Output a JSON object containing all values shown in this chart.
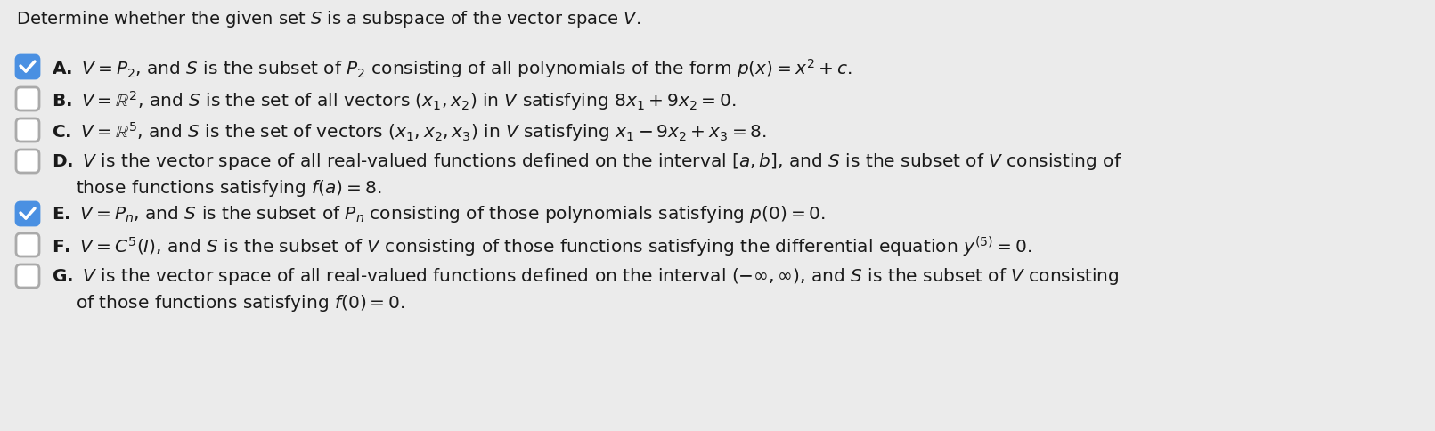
{
  "background_color": "#ebebeb",
  "title_text": "Determine whether the given set $S$ is a subspace of the vector space $V$.",
  "items": [
    {
      "label": "A",
      "checked": true,
      "text": "$\\mathbf{A.}$ $V = P_2$, and $S$ is the subset of $P_2$ consisting of all polynomials of the form $p(x) = x^2 + c$."
    },
    {
      "label": "B",
      "checked": false,
      "text": "$\\mathbf{B.}$ $V = \\mathbb{R}^2$, and $S$ is the set of all vectors $(x_1, x_2)$ in $V$ satisfying $8x_1 + 9x_2 = 0$."
    },
    {
      "label": "C",
      "checked": false,
      "text": "$\\mathbf{C.}$ $V = \\mathbb{R}^5$, and $S$ is the set of vectors $(x_1, x_2, x_3)$ in $V$ satisfying $x_1 - 9x_2 + x_3 = 8$."
    },
    {
      "label": "D",
      "checked": false,
      "text_line1": "$\\mathbf{D.}$ $V$ is the vector space of all real-valued functions defined on the interval $[a, b]$, and $S$ is the subset of $V$ consisting of",
      "text_line2": "those functions satisfying $f(a) = 8$."
    },
    {
      "label": "E",
      "checked": true,
      "text": "$\\mathbf{E.}$ $V = P_n$, and $S$ is the subset of $P_n$ consisting of those polynomials satisfying $p(0) = 0$."
    },
    {
      "label": "F",
      "checked": false,
      "text": "$\\mathbf{F.}$ $V = C^5(I)$, and $S$ is the subset of $V$ consisting of those functions satisfying the differential equation $y^{(5)} = 0$."
    },
    {
      "label": "G",
      "checked": false,
      "text_line1": "$\\mathbf{G.}$ $V$ is the vector space of all real-valued functions defined on the interval $(-\\infty, \\infty)$, and $S$ is the subset of $V$ consisting",
      "text_line2": "of those functions satisfying $f(0) = 0$."
    }
  ],
  "font_size": 14.5,
  "title_font_size": 14.0,
  "check_color": "#4a90e2",
  "uncheck_fill": "#ffffff",
  "border_color": "#aaaaaa",
  "text_color": "#1a1a1a",
  "figw": 16.11,
  "figh": 4.85,
  "dpi": 100
}
